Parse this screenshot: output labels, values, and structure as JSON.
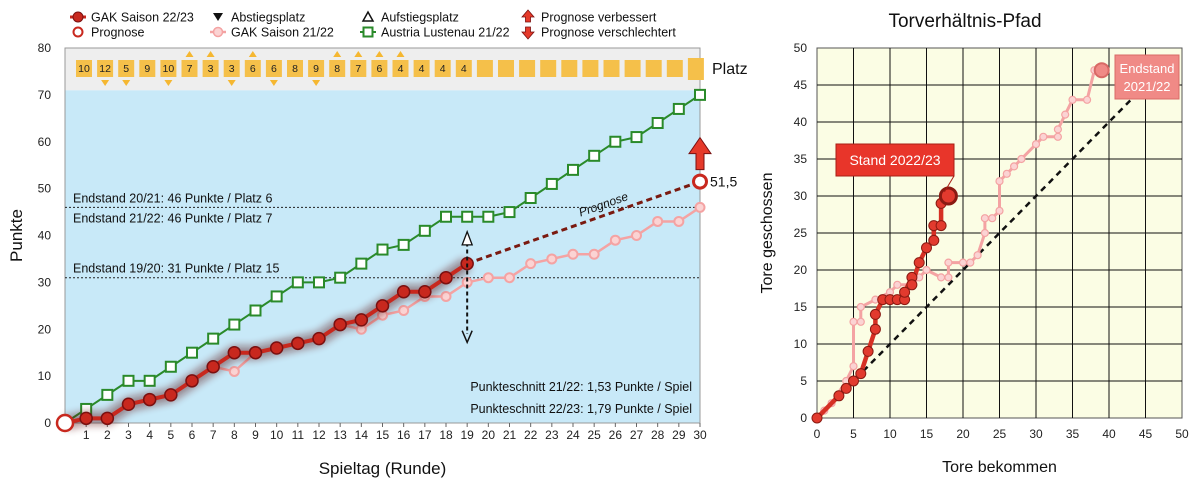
{
  "colors": {
    "gak2223": "#c8281e",
    "gak2122": "#f4a3a3",
    "lustenau": "#2a8a2a",
    "prognose": "#7a1a10",
    "plot_bg": "#c8e9f8",
    "band_bg": "#eeeeee",
    "place_box": "#f5c04a",
    "place_arrow": "#f5b731",
    "path_bg": "#fbfde4",
    "callout_2223": "#e8352a",
    "callout_2122": "#f08a86"
  },
  "chart_data": [
    {
      "type": "line",
      "xlabel": "Spieltag (Runde)",
      "ylabel": "Punkte",
      "xlim": [
        0,
        30
      ],
      "ylim": [
        0,
        80
      ],
      "xticks": [
        1,
        2,
        3,
        4,
        5,
        6,
        7,
        8,
        9,
        10,
        11,
        12,
        13,
        14,
        15,
        16,
        17,
        18,
        19,
        20,
        21,
        22,
        23,
        24,
        25,
        26,
        27,
        28,
        29,
        30
      ],
      "yticks": [
        0,
        10,
        20,
        30,
        40,
        50,
        60,
        70,
        80
      ],
      "legend": {
        "gak2223": "GAK Saison 22/23",
        "prognose": "Prognose",
        "abstieg": "Abstiegsplatz",
        "gak2122": "GAK Saison 21/22",
        "aufstieg": "Aufstiegsplatz",
        "lustenau": "Austria Lustenau 21/22",
        "verbessert": "Prognose verbessert",
        "verschlechtert": "Prognose verschlechtert"
      },
      "series": [
        {
          "key": "gak2223",
          "name": "GAK Saison 22/23",
          "x": [
            0,
            1,
            2,
            3,
            4,
            5,
            6,
            7,
            8,
            9,
            10,
            11,
            12,
            13,
            14,
            15,
            16,
            17,
            18,
            19
          ],
          "y": [
            0,
            1,
            1,
            4,
            5,
            6,
            9,
            12,
            15,
            15,
            16,
            17,
            18,
            21,
            22,
            25,
            28,
            28,
            31,
            34
          ]
        },
        {
          "key": "gak2122",
          "name": "GAK Saison 21/22",
          "x": [
            0,
            1,
            2,
            3,
            4,
            5,
            6,
            7,
            8,
            9,
            10,
            11,
            12,
            13,
            14,
            15,
            16,
            17,
            18,
            19,
            20,
            21,
            22,
            23,
            24,
            25,
            26,
            27,
            28,
            29,
            30
          ],
          "y": [
            0,
            1,
            1,
            4,
            5,
            6,
            9,
            12,
            11,
            15,
            16,
            17,
            18,
            21,
            20,
            23,
            24,
            27,
            27,
            30,
            31,
            31,
            34,
            35,
            36,
            36,
            39,
            40,
            43,
            43,
            46
          ]
        },
        {
          "key": "lustenau",
          "name": "Austria Lustenau 21/22",
          "x": [
            0,
            1,
            2,
            3,
            4,
            5,
            6,
            7,
            8,
            9,
            10,
            11,
            12,
            13,
            14,
            15,
            16,
            17,
            18,
            19,
            20,
            21,
            22,
            23,
            24,
            25,
            26,
            27,
            28,
            29,
            30
          ],
          "y": [
            0,
            3,
            6,
            9,
            9,
            12,
            15,
            18,
            21,
            24,
            27,
            30,
            30,
            31,
            34,
            37,
            38,
            41,
            44,
            44,
            44,
            45,
            48,
            51,
            54,
            57,
            60,
            61,
            64,
            67,
            70
          ]
        }
      ],
      "prognose": {
        "label": "Prognose",
        "from": [
          19,
          34
        ],
        "to": [
          30,
          51.5
        ],
        "value_label": "51,5"
      },
      "reference_lines": [
        {
          "y": 46,
          "label": "Endstand 20/21: 46 Punkte / Platz 6",
          "pos": "above"
        },
        {
          "y": 46,
          "label": "Endstand 21/22: 46 Punkte / Platz 7",
          "pos": "below"
        },
        {
          "y": 31,
          "label": "Endstand 19/20: 31 Punkte / Platz 15",
          "pos": "above"
        }
      ],
      "annotations": [
        "Punkteschnitt 21/22: 1,53 Punkte / Spiel",
        "Punkteschnitt 22/23: 1,79 Punkte / Spiel"
      ],
      "placement": {
        "label": "Platz",
        "places": [
          "10",
          "12",
          "5",
          "9",
          "10",
          "7",
          "3",
          "3",
          "6",
          "6",
          "8",
          "9",
          "8",
          "7",
          "6",
          "4",
          "4",
          "4",
          "4"
        ],
        "up": [
          6,
          7,
          9,
          13,
          14,
          15,
          16
        ],
        "down": [
          2,
          3,
          5,
          8,
          10,
          12
        ]
      }
    },
    {
      "type": "line",
      "title": "Torverhältnis-Pfad",
      "xlabel": "Tore  bekommen",
      "ylabel": "Tore geschossen",
      "xlim": [
        0,
        50
      ],
      "ylim": [
        0,
        50
      ],
      "xticks": [
        0,
        5,
        10,
        15,
        20,
        25,
        30,
        35,
        40,
        45,
        50
      ],
      "yticks": [
        0,
        5,
        10,
        15,
        20,
        25,
        30,
        35,
        40,
        45,
        50
      ],
      "series": [
        {
          "key": "gak2122",
          "name": "GAK Saison 21/22",
          "points": [
            [
              0,
              0
            ],
            [
              1,
              1
            ],
            [
              2,
              2
            ],
            [
              4,
              5
            ],
            [
              5,
              7
            ],
            [
              5,
              13
            ],
            [
              6,
              13
            ],
            [
              6,
              15
            ],
            [
              8,
              16
            ],
            [
              10,
              17
            ],
            [
              11,
              18
            ],
            [
              13,
              18
            ],
            [
              14,
              19
            ],
            [
              15,
              20
            ],
            [
              17,
              19
            ],
            [
              18,
              19
            ],
            [
              18,
              21
            ],
            [
              20,
              21
            ],
            [
              21,
              21
            ],
            [
              22,
              22
            ],
            [
              23,
              25
            ],
            [
              23,
              27
            ],
            [
              24,
              27
            ],
            [
              25,
              28
            ],
            [
              25,
              32
            ],
            [
              26,
              33
            ],
            [
              27,
              34
            ],
            [
              28,
              35
            ],
            [
              30,
              37
            ],
            [
              31,
              38
            ],
            [
              33,
              38
            ],
            [
              33,
              39
            ],
            [
              34,
              41
            ],
            [
              35,
              43
            ],
            [
              37,
              43
            ],
            [
              38,
              47
            ],
            [
              39,
              47
            ]
          ]
        },
        {
          "key": "gak2223",
          "name": "GAK Saison 22/23",
          "points": [
            [
              0,
              0
            ],
            [
              3,
              3
            ],
            [
              4,
              4
            ],
            [
              5,
              5
            ],
            [
              6,
              6
            ],
            [
              7,
              9
            ],
            [
              8,
              12
            ],
            [
              8,
              14
            ],
            [
              9,
              16
            ],
            [
              10,
              16
            ],
            [
              11,
              16
            ],
            [
              12,
              16
            ],
            [
              12,
              17
            ],
            [
              13,
              19
            ],
            [
              13,
              18
            ],
            [
              14,
              21
            ],
            [
              15,
              23
            ],
            [
              16,
              24
            ],
            [
              16,
              26
            ],
            [
              17,
              26
            ],
            [
              17,
              29
            ],
            [
              18,
              30
            ]
          ]
        }
      ],
      "reference": "diagonal",
      "callouts": [
        {
          "key": "gak2223",
          "text": "Stand 2022/23"
        },
        {
          "key": "gak2122",
          "line1": "Endstand",
          "line2": "2021/22"
        }
      ]
    }
  ]
}
